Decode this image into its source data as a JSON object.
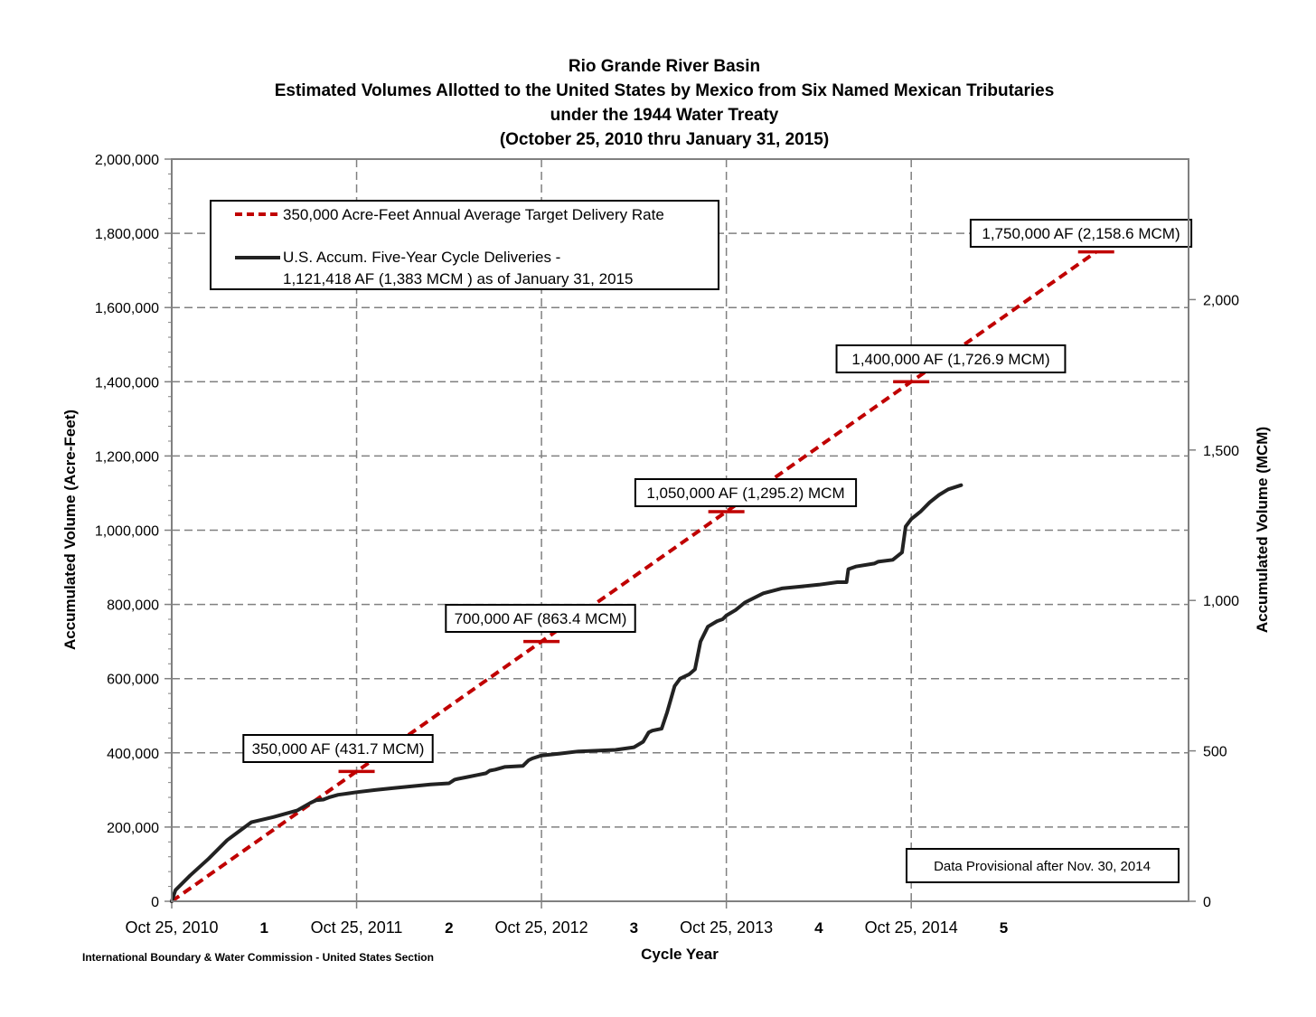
{
  "chart_data": {
    "type": "line",
    "title_lines": [
      "Rio Grande River Basin",
      "Estimated Volumes Allotted to the United States by Mexico from Six Named Mexican Tributaries",
      "under the 1944 Water Treaty",
      "(October 25, 2010 thru January 31, 2015)"
    ],
    "xlabel": "Cycle Year",
    "ylabel": "Accumulated Volume (Acre-Feet)",
    "y2label": "Accumulated Volume (MCM)",
    "xlim": [
      0,
      5.5
    ],
    "ylim": [
      0,
      2000000
    ],
    "y2lim": [
      0,
      2466.96
    ],
    "x_tick_labels": [
      {
        "x": 0,
        "label": "Oct 25, 2010"
      },
      {
        "x": 1,
        "label": "Oct 25, 2011"
      },
      {
        "x": 2,
        "label": "Oct 25, 2012"
      },
      {
        "x": 3,
        "label": "Oct 25, 2013"
      },
      {
        "x": 4,
        "label": "Oct 25, 2014"
      }
    ],
    "cycle_labels": [
      {
        "x": 0.5,
        "label": "1"
      },
      {
        "x": 1.5,
        "label": "2"
      },
      {
        "x": 2.5,
        "label": "3"
      },
      {
        "x": 3.5,
        "label": "4"
      },
      {
        "x": 4.5,
        "label": "5"
      }
    ],
    "y_ticks": [
      "0",
      "200,000",
      "400,000",
      "600,000",
      "800,000",
      "1,000,000",
      "1,200,000",
      "1,400,000",
      "1,600,000",
      "1,800,000",
      "2,000,000"
    ],
    "y_tick_values": [
      0,
      200000,
      400000,
      600000,
      800000,
      1000000,
      1200000,
      1400000,
      1600000,
      1800000,
      2000000
    ],
    "y2_ticks": [
      "0",
      "500",
      "1,000",
      "1,500",
      "2,000"
    ],
    "y2_tick_values": [
      0,
      500,
      1000,
      1500,
      2000
    ],
    "grid": true,
    "legend_position": "top-left",
    "series": [
      {
        "name": "350,000 Acre-Feet Annual Average Target Delivery Rate",
        "style": "dashed",
        "color": "#c00000",
        "x": [
          0,
          5
        ],
        "y": [
          0,
          1750000
        ]
      },
      {
        "name": "U.S. Accum. Five-Year Cycle Deliveries -",
        "name_line2": "1,121,418 AF (1,383 MCM ) as of January 31, 2015",
        "style": "solid",
        "color": "#222222",
        "x": [
          0,
          0.02,
          0.1,
          0.2,
          0.3,
          0.43,
          0.55,
          0.68,
          0.75,
          0.78,
          0.82,
          0.85,
          0.9,
          0.96,
          1.0,
          1.1,
          1.2,
          1.3,
          1.4,
          1.5,
          1.53,
          1.55,
          1.6,
          1.65,
          1.7,
          1.72,
          1.75,
          1.8,
          1.9,
          1.93,
          1.95,
          2.0,
          2.1,
          2.2,
          2.4,
          2.5,
          2.55,
          2.58,
          2.6,
          2.65,
          2.68,
          2.72,
          2.75,
          2.8,
          2.83,
          2.86,
          2.9,
          2.95,
          2.98,
          3.0,
          3.05,
          3.1,
          3.2,
          3.3,
          3.4,
          3.5,
          3.6,
          3.65,
          3.66,
          3.7,
          3.8,
          3.82,
          3.9,
          3.95,
          3.97,
          4.0,
          4.05,
          4.1,
          4.15,
          4.2,
          4.27
        ],
        "y": [
          0,
          30000,
          70000,
          115000,
          165000,
          213000,
          227000,
          245000,
          265000,
          272000,
          274000,
          280000,
          287000,
          291000,
          294000,
          300000,
          305000,
          310000,
          315000,
          318000,
          328000,
          330000,
          335000,
          340000,
          345000,
          352000,
          355000,
          362000,
          365000,
          380000,
          385000,
          393000,
          398000,
          404000,
          408000,
          415000,
          430000,
          455000,
          460000,
          465000,
          510000,
          580000,
          600000,
          612000,
          625000,
          700000,
          740000,
          755000,
          760000,
          770000,
          785000,
          805000,
          830000,
          843000,
          848000,
          853000,
          860000,
          860000,
          895000,
          902000,
          910000,
          915000,
          920000,
          940000,
          1010000,
          1030000,
          1050000,
          1075000,
          1095000,
          1110000,
          1121418
        ]
      }
    ],
    "target_markers": [
      {
        "x": 1,
        "y": 350000,
        "label": "350,000 AF (431.7 MCM)"
      },
      {
        "x": 2,
        "y": 700000,
        "label": "700,000 AF (863.4 MCM)"
      },
      {
        "x": 3,
        "y": 1050000,
        "label": "1,050,000 AF (1,295.2) MCM"
      },
      {
        "x": 4,
        "y": 1400000,
        "label": "1,400,000  AF (1,726.9 MCM)"
      },
      {
        "x": 5,
        "y": 1750000,
        "label": "1,750,000 AF (2,158.6 MCM)"
      }
    ],
    "note": "Data Provisional after Nov. 30, 2014",
    "footer": "International Boundary & Water Commission - United States Section"
  }
}
